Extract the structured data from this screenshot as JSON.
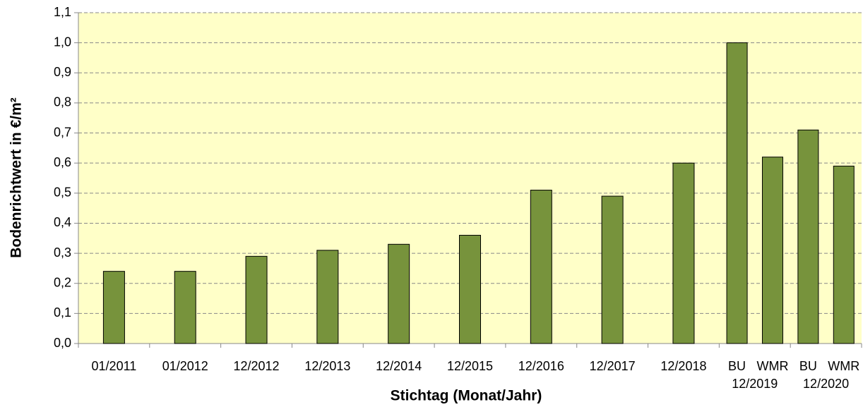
{
  "chart_data": {
    "type": "bar",
    "ylabel": "Bodenrichtwert in €/m²",
    "xlabel": "Stichtag (Monat/Jahr)",
    "categories": [
      "01/2011",
      "01/2012",
      "12/2012",
      "12/2013",
      "12/2014",
      "12/2015",
      "12/2016",
      "12/2017",
      "12/2018",
      "12/2019",
      "12/2020"
    ],
    "subcategories": [
      null,
      null,
      null,
      null,
      null,
      null,
      null,
      null,
      null,
      [
        "BU",
        "WMR"
      ],
      [
        "BU",
        "WMR"
      ]
    ],
    "values": [
      0.24,
      0.24,
      0.29,
      0.31,
      0.33,
      0.36,
      0.51,
      0.49,
      0.6,
      [
        1.0,
        0.62
      ],
      [
        0.71,
        0.59
      ]
    ],
    "color": "#77933c",
    "ylim": [
      0,
      1.1
    ],
    "yticks": [
      {
        "value": 0,
        "label": "0,0"
      },
      {
        "value": 0.1,
        "label": "0,1"
      },
      {
        "value": 0.2,
        "label": "0,2"
      },
      {
        "value": 0.3,
        "label": "0,3"
      },
      {
        "value": 0.4,
        "label": "0,4"
      },
      {
        "value": 0.5,
        "label": "0,5"
      },
      {
        "value": 0.6,
        "label": "0,6"
      },
      {
        "value": 0.7,
        "label": "0,7"
      },
      {
        "value": 0.8,
        "label": "0,8"
      },
      {
        "value": 0.9,
        "label": "0,9"
      },
      {
        "value": 1.0,
        "label": "1,0"
      },
      {
        "value": 1.1,
        "label": "1,1"
      }
    ],
    "grid": true
  }
}
